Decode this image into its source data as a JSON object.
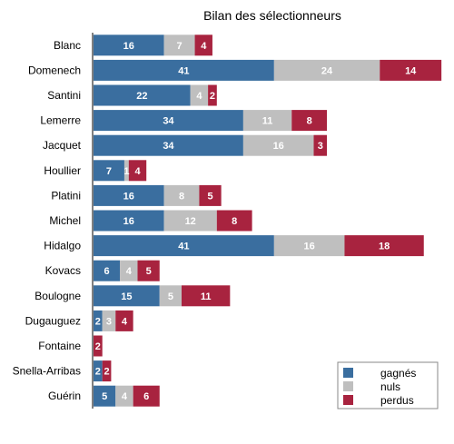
{
  "chart_data": {
    "type": "bar",
    "orientation": "horizontal",
    "stacked": true,
    "title": "Bilan des sélectionneurs",
    "xlabel": "",
    "ylabel": "",
    "grid": false,
    "legend_position": "bottom-right",
    "categories": [
      "Blanc",
      "Domenech",
      "Santini",
      "Lemerre",
      "Jacquet",
      "Houllier",
      "Platini",
      "Michel",
      "Hidalgo",
      "Kovacs",
      "Boulogne",
      "Dugauguez",
      "Fontaine",
      "Snella-Arribas",
      "Guérin"
    ],
    "series": [
      {
        "name": "gagnés",
        "color": "#3a6e9f",
        "values": [
          16,
          41,
          22,
          34,
          34,
          7,
          16,
          16,
          41,
          6,
          15,
          2,
          0,
          2,
          5
        ]
      },
      {
        "name": "nuls",
        "color": "#bfbfbf",
        "values": [
          7,
          24,
          4,
          11,
          16,
          1,
          8,
          12,
          16,
          4,
          5,
          3,
          0,
          0,
          4
        ]
      },
      {
        "name": "perdus",
        "color": "#a8233f",
        "values": [
          4,
          14,
          2,
          8,
          3,
          4,
          5,
          8,
          18,
          5,
          11,
          4,
          2,
          2,
          6
        ]
      }
    ]
  }
}
